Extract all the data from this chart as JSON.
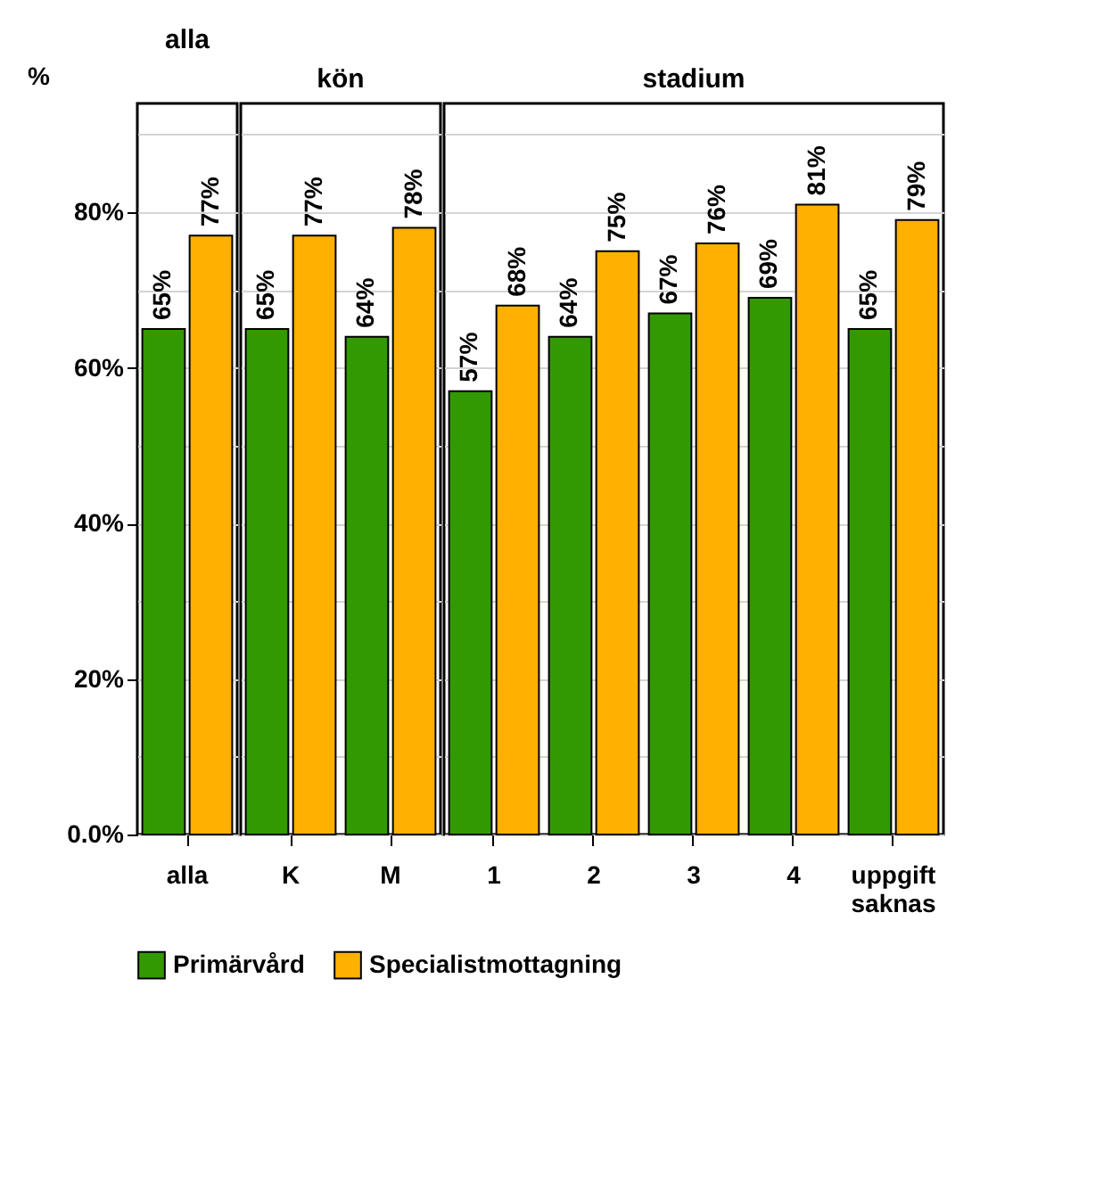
{
  "chart_data": [
    {
      "type": "bar",
      "title": "alla",
      "ylabel": "%",
      "categories": [
        "alla"
      ],
      "ylim": [
        0,
        94
      ],
      "yticks": [
        {
          "value": 0,
          "label": "0.0%"
        },
        {
          "value": 10,
          "label": null
        },
        {
          "value": 20,
          "label": "20%"
        },
        {
          "value": 30,
          "label": null
        },
        {
          "value": 40,
          "label": "40%"
        },
        {
          "value": 50,
          "label": null
        },
        {
          "value": 60,
          "label": "60%"
        },
        {
          "value": 70,
          "label": null
        },
        {
          "value": 80,
          "label": "80%"
        },
        {
          "value": 90,
          "label": null
        }
      ],
      "grid": true,
      "legend": "bottom",
      "series": [
        {
          "name": "Primärvård",
          "color": "#339900",
          "values": [
            65
          ],
          "value_labels": [
            "65%"
          ]
        },
        {
          "name": "Specialistmottagning",
          "color": "#ffb000",
          "values": [
            77
          ],
          "value_labels": [
            "77%"
          ]
        }
      ]
    },
    {
      "type": "bar",
      "title": "kön",
      "categories": [
        "K",
        "M"
      ],
      "ylim": [
        0,
        94
      ],
      "yticks": [
        0,
        10,
        20,
        30,
        40,
        50,
        60,
        70,
        80,
        90
      ],
      "grid": true,
      "legend": "bottom",
      "tick_labels": "x",
      "series": [
        {
          "name": "Primärvård",
          "color": "#339900",
          "values": [
            65,
            64
          ],
          "value_labels": [
            "65%",
            "64%"
          ]
        },
        {
          "name": "Specialistmottagning",
          "color": "#ffb000",
          "values": [
            77,
            78
          ],
          "value_labels": [
            "77%",
            "78%"
          ]
        }
      ]
    },
    {
      "type": "bar",
      "title": "stadium",
      "categories": [
        "1",
        "2",
        "3",
        "4",
        "uppgift saknas"
      ],
      "ylim": [
        0,
        94
      ],
      "yticks": [
        0,
        10,
        20,
        30,
        40,
        50,
        60,
        70,
        80,
        90
      ],
      "grid": true,
      "legend": "bottom",
      "tick_labels": "x",
      "series": [
        {
          "name": "Primärvård",
          "color": "#339900",
          "values": [
            57,
            64,
            67,
            69,
            65
          ],
          "value_labels": [
            "57%",
            "64%",
            "67%",
            "69%",
            "65%"
          ]
        },
        {
          "name": "Specialistmottagning",
          "color": "#ffb000",
          "values": [
            68,
            75,
            76,
            81,
            79
          ],
          "value_labels": [
            "68%",
            "75%",
            "76%",
            "81%",
            "79%"
          ]
        }
      ]
    }
  ]
}
